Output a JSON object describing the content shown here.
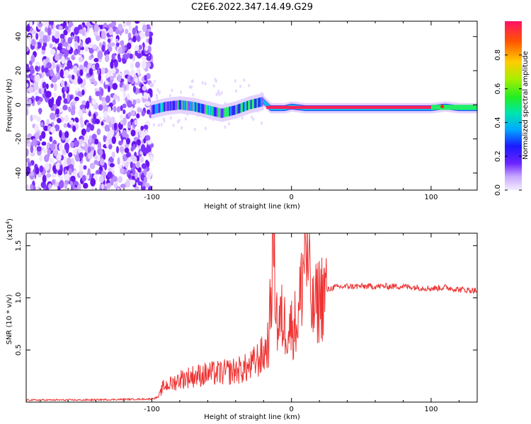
{
  "title": "C2E6.2022.347.14.49.G29",
  "chart_data": [
    {
      "type": "heatmap",
      "xlabel": "Height of straight line (km)",
      "ylabel": "Frequency (Hz)",
      "xlim": [
        -190,
        133
      ],
      "ylim": [
        -50,
        49
      ],
      "xticks": [
        -100,
        0,
        100
      ],
      "yticks": [
        -40,
        -20,
        0,
        20,
        40
      ],
      "colorbar": {
        "label": "Normalized spectral amplitude",
        "range": [
          0.0,
          1.0
        ],
        "ticks": [
          "0.0",
          "0.2",
          "0.4",
          "0.6",
          "0.8"
        ]
      },
      "ridge_x": [
        -100,
        -90,
        -80,
        -70,
        -60,
        -50,
        -40,
        -30,
        -20,
        -15,
        -10,
        -5,
        0,
        10,
        20,
        40,
        60,
        80,
        100,
        110,
        120,
        133
      ],
      "ridge_y": [
        -3,
        -1,
        0,
        -1,
        -3,
        -5,
        -3,
        0,
        2,
        -2,
        -2,
        -2,
        -1,
        -2,
        -2,
        -2,
        -2,
        -2,
        -2,
        -1,
        -2,
        -2
      ]
    },
    {
      "type": "line",
      "xlabel": "Height of straight line (km)",
      "ylabel": "SNR (10 * v/v)",
      "y_multiplier": "(x10",
      "y_multiplier_exp": "4",
      "y_multiplier_close": ")",
      "xlim": [
        -190,
        133
      ],
      "ylim": [
        0,
        1.62
      ],
      "xticks": [
        -100,
        0,
        100
      ],
      "yticks": [
        0.5,
        1.0,
        1.5
      ],
      "ytick_labels": [
        "0.5",
        "1.0",
        "1.5"
      ],
      "color": "#ee3333",
      "x": [
        -190,
        -150,
        -100,
        -95,
        -92,
        -85,
        -80,
        -70,
        -60,
        -50,
        -40,
        -30,
        -25,
        -20,
        -16,
        -13,
        -10,
        -7,
        -5,
        0,
        5,
        10,
        15,
        20,
        25,
        30,
        40,
        60,
        80,
        100,
        110,
        120,
        133
      ],
      "y": [
        0.02,
        0.02,
        0.03,
        0.05,
        0.15,
        0.18,
        0.22,
        0.25,
        0.27,
        0.28,
        0.3,
        0.33,
        0.4,
        0.45,
        0.6,
        1.62,
        0.7,
        0.8,
        0.75,
        0.72,
        0.8,
        1.55,
        0.85,
        1.0,
        1.07,
        1.1,
        1.11,
        1.11,
        1.11,
        1.09,
        1.1,
        1.08,
        1.07
      ]
    }
  ]
}
